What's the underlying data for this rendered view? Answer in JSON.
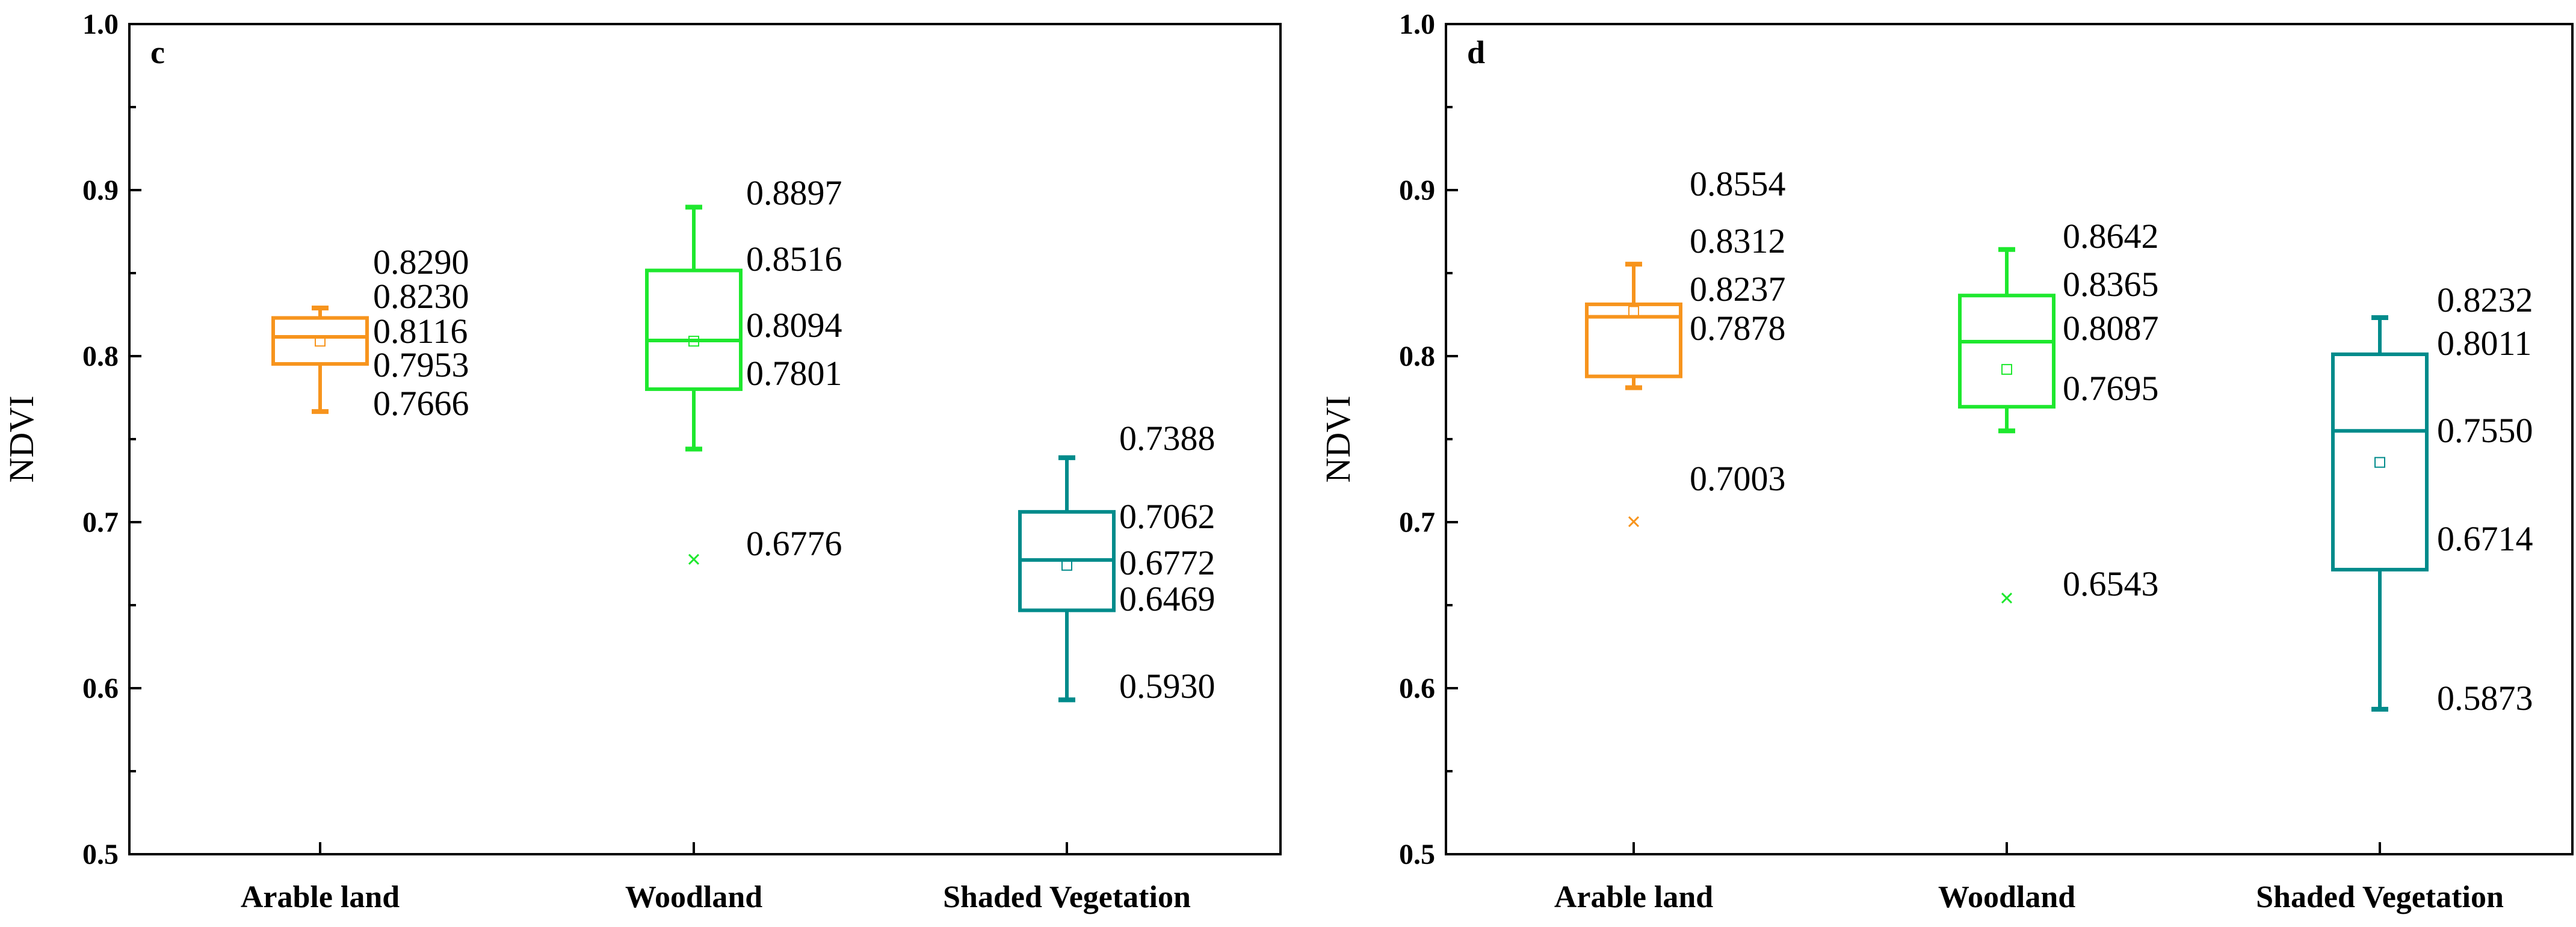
{
  "chart_data": [
    {
      "type": "box",
      "panel": "c",
      "ylabel": "NDVI",
      "ylim": [
        0.5,
        1.0
      ],
      "yticks": [
        "0.5",
        "0.6",
        "0.7",
        "0.8",
        "0.9",
        "1.0"
      ],
      "categories": [
        "Arable land",
        "Woodland",
        "Shaded Vegetation"
      ],
      "boxes": [
        {
          "name": "Arable land",
          "color": "#F7941D",
          "whisker_low": 0.7666,
          "q1": 0.7953,
          "median": 0.8116,
          "q3": 0.823,
          "whisker_high": 0.829,
          "mean": 0.809,
          "outliers": [],
          "labels": [
            "0.8290",
            "0.8230",
            "0.8116",
            "0.7953",
            "0.7666"
          ]
        },
        {
          "name": "Woodland",
          "color": "#1EE82E",
          "whisker_low": 0.744,
          "q1": 0.7801,
          "median": 0.8094,
          "q3": 0.8516,
          "whisker_high": 0.8897,
          "mean": 0.809,
          "outliers": [
            0.6776
          ],
          "labels": [
            "0.8897",
            "0.8516",
            "0.8094",
            "0.7801",
            "0.6776"
          ]
        },
        {
          "name": "Shaded Vegetation",
          "color": "#008B8B",
          "whisker_low": 0.593,
          "q1": 0.6469,
          "median": 0.6772,
          "q3": 0.7062,
          "whisker_high": 0.7388,
          "mean": 0.674,
          "outliers": [],
          "labels": [
            "0.7388",
            "0.7062",
            "0.6772",
            "0.6469",
            "0.5930"
          ]
        }
      ]
    },
    {
      "type": "box",
      "panel": "d",
      "ylabel": "NDVI",
      "ylim": [
        0.5,
        1.0
      ],
      "yticks": [
        "0.5",
        "0.6",
        "0.7",
        "0.8",
        "0.9",
        "1.0"
      ],
      "categories": [
        "Arable land",
        "Woodland",
        "Shaded Vegetation"
      ],
      "boxes": [
        {
          "name": "Arable land",
          "color": "#F7941D",
          "whisker_low": 0.781,
          "q1": 0.7878,
          "median": 0.8237,
          "q3": 0.8312,
          "whisker_high": 0.8554,
          "mean": 0.827,
          "outliers": [
            0.7003
          ],
          "labels": [
            "0.8554",
            "0.8312",
            "0.8237",
            "0.7878",
            "0.7003"
          ]
        },
        {
          "name": "Woodland",
          "color": "#1EE82E",
          "whisker_low": 0.755,
          "q1": 0.7695,
          "median": 0.8087,
          "q3": 0.8365,
          "whisker_high": 0.8642,
          "mean": 0.792,
          "outliers": [
            0.6543
          ],
          "labels": [
            "0.8642",
            "0.8365",
            "0.8087",
            "0.7695",
            "0.6543"
          ]
        },
        {
          "name": "Shaded Vegetation",
          "color": "#008B8B",
          "whisker_low": 0.5873,
          "q1": 0.6714,
          "median": 0.755,
          "q3": 0.8011,
          "whisker_high": 0.8232,
          "mean": 0.736,
          "outliers": [],
          "labels": [
            "0.8232",
            "0.8011",
            "0.7550",
            "0.6714",
            "0.5873"
          ]
        }
      ]
    }
  ]
}
